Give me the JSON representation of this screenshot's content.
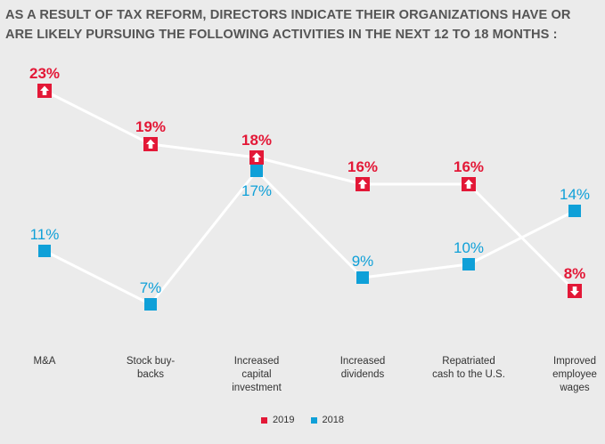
{
  "title": "AS A RESULT OF TAX REFORM, DIRECTORS INDICATE THEIR ORGANIZATIONS HAVE OR ARE LIKELY PURSUING THE FOLLOWING ACTIVITIES IN THE NEXT 12 TO 18 MONTHS :",
  "colors": {
    "series_2019": "#e31837",
    "series_2018": "#0fa0d8",
    "line": "#ffffff",
    "background": "#ebebeb"
  },
  "chart_data": {
    "type": "line",
    "title": "AS A RESULT OF TAX REFORM, DIRECTORS INDICATE THEIR ORGANIZATIONS HAVE OR ARE LIKELY PURSUING THE FOLLOWING ACTIVITIES IN THE NEXT 12 TO 18 MONTHS :",
    "categories": [
      [
        "M&A"
      ],
      [
        "Stock buy-",
        "backs"
      ],
      [
        "Increased",
        "capital",
        "investment"
      ],
      [
        "Increased",
        "dividends"
      ],
      [
        "Repatriated",
        "cash to the U.S."
      ],
      [
        "Improved",
        "employee",
        "wages"
      ]
    ],
    "series": [
      {
        "name": "2019",
        "values": [
          23,
          19,
          18,
          16,
          16,
          8
        ],
        "labels": [
          "23%",
          "19%",
          "18%",
          "16%",
          "16%",
          "8%"
        ],
        "change_icons": [
          "up-arrow-icon",
          "up-arrow-icon",
          "up-arrow-icon",
          "up-arrow-icon",
          "up-arrow-icon",
          "down-arrow-icon"
        ]
      },
      {
        "name": "2018",
        "values": [
          11,
          7,
          17,
          9,
          10,
          14
        ],
        "labels": [
          "11%",
          "7%",
          "17%",
          "9%",
          "10%",
          "14%"
        ]
      }
    ],
    "xlabel": "",
    "ylabel": "",
    "ylim": [
      5,
      24
    ],
    "grid": false,
    "legend": "bottom-center"
  },
  "legend": {
    "label_2019": "2019",
    "label_2018": "2018"
  }
}
